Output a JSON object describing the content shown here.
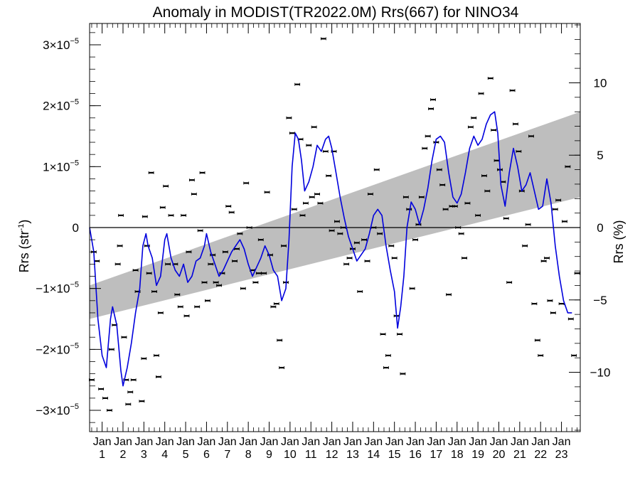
{
  "chart_data": {
    "type": "line",
    "title": "Anomaly in MODIST(TR2022.0M) Rrs(667) for NINO34",
    "ylabel_left": "Rrs (str",
    "ylabel_left_sup": "-1",
    "ylabel_left_close": ")",
    "ylabel_right": "Rrs (%)",
    "xlabel": "",
    "ylim": [
      -3.35e-05,
      3.35e-05
    ],
    "y_right_lim": [
      -14.1,
      14.1
    ],
    "xlim": [
      0.4,
      23.9
    ],
    "left_ticks": [
      {
        "mant": "3×10",
        "exp": "−5",
        "value": 3e-05
      },
      {
        "mant": "2×10",
        "exp": "−5",
        "value": 2e-05
      },
      {
        "mant": "1×10",
        "exp": "−5",
        "value": 1e-05
      },
      {
        "mant": "0",
        "exp": "",
        "value": 0
      },
      {
        "mant": "−1×10",
        "exp": "−5",
        "value": -1e-05
      },
      {
        "mant": "−2×10",
        "exp": "−5",
        "value": -2e-05
      },
      {
        "mant": "−3×10",
        "exp": "−5",
        "value": -3e-05
      }
    ],
    "right_ticks": [
      {
        "label": "10",
        "value": 10
      },
      {
        "label": "5",
        "value": 5
      },
      {
        "label": "0",
        "value": 0
      },
      {
        "label": "−5",
        "value": -5
      },
      {
        "label": "−10",
        "value": -10
      }
    ],
    "x_tick_month": "Jan",
    "x_tick_years": [
      "1",
      "2",
      "3",
      "4",
      "5",
      "6",
      "7",
      "8",
      "9",
      "10",
      "11",
      "12",
      "13",
      "14",
      "15",
      "16",
      "17",
      "18",
      "19",
      "20",
      "21",
      "22",
      "23"
    ],
    "trend_band": {
      "x": [
        0.4,
        23.9
      ],
      "upper": [
        -9.5e-06,
        1.9e-05
      ],
      "lower": [
        -1.5e-05,
        5e-06
      ],
      "color": "#bebebe"
    },
    "zero_line_color": "#000000",
    "series": [
      {
        "kind": "smoothed",
        "color": "#0000dd",
        "points": [
          [
            0.4,
            0.0
          ],
          [
            0.6,
            -0.4
          ],
          [
            0.8,
            -1.5
          ],
          [
            1.0,
            -2.1
          ],
          [
            1.2,
            -2.3
          ],
          [
            1.4,
            -1.5
          ],
          [
            1.5,
            -1.3
          ],
          [
            1.7,
            -1.6
          ],
          [
            1.9,
            -2.35
          ],
          [
            2.0,
            -2.6
          ],
          [
            2.2,
            -2.3
          ],
          [
            2.4,
            -1.9
          ],
          [
            2.6,
            -1.4
          ],
          [
            2.8,
            -1.0
          ],
          [
            2.95,
            -0.3
          ],
          [
            3.1,
            -0.1
          ],
          [
            3.2,
            -0.3
          ],
          [
            3.4,
            -0.5
          ],
          [
            3.6,
            -0.95
          ],
          [
            3.8,
            -0.8
          ],
          [
            4.0,
            -0.2
          ],
          [
            4.1,
            -0.1
          ],
          [
            4.3,
            -0.5
          ],
          [
            4.5,
            -0.7
          ],
          [
            4.7,
            -0.8
          ],
          [
            4.9,
            -0.6
          ],
          [
            5.1,
            -0.9
          ],
          [
            5.3,
            -0.8
          ],
          [
            5.5,
            -0.55
          ],
          [
            5.7,
            -0.5
          ],
          [
            5.9,
            -0.3
          ],
          [
            6.0,
            -0.1
          ],
          [
            6.2,
            -0.4
          ],
          [
            6.4,
            -0.6
          ],
          [
            6.6,
            -0.8
          ],
          [
            6.8,
            -0.7
          ],
          [
            7.0,
            -0.55
          ],
          [
            7.2,
            -0.4
          ],
          [
            7.4,
            -0.3
          ],
          [
            7.6,
            -0.2
          ],
          [
            7.8,
            -0.35
          ],
          [
            8.0,
            -0.6
          ],
          [
            8.2,
            -0.8
          ],
          [
            8.4,
            -0.65
          ],
          [
            8.6,
            -0.5
          ],
          [
            8.8,
            -0.3
          ],
          [
            9.0,
            -0.45
          ],
          [
            9.2,
            -0.7
          ],
          [
            9.4,
            -0.8
          ],
          [
            9.6,
            -1.2
          ],
          [
            9.8,
            -1.0
          ],
          [
            9.95,
            -0.2
          ],
          [
            10.1,
            1.0
          ],
          [
            10.25,
            1.55
          ],
          [
            10.4,
            1.45
          ],
          [
            10.55,
            1.1
          ],
          [
            10.7,
            0.6
          ],
          [
            10.9,
            0.75
          ],
          [
            11.1,
            1.0
          ],
          [
            11.3,
            1.35
          ],
          [
            11.5,
            1.25
          ],
          [
            11.7,
            1.45
          ],
          [
            11.85,
            1.5
          ],
          [
            12.0,
            1.3
          ],
          [
            12.2,
            0.9
          ],
          [
            12.4,
            0.5
          ],
          [
            12.6,
            0.15
          ],
          [
            12.8,
            -0.15
          ],
          [
            13.0,
            -0.35
          ],
          [
            13.2,
            -0.55
          ],
          [
            13.4,
            -0.45
          ],
          [
            13.6,
            -0.35
          ],
          [
            13.8,
            -0.1
          ],
          [
            14.0,
            0.2
          ],
          [
            14.2,
            0.3
          ],
          [
            14.4,
            0.2
          ],
          [
            14.6,
            -0.3
          ],
          [
            14.8,
            -0.7
          ],
          [
            15.0,
            -1.05
          ],
          [
            15.15,
            -1.65
          ],
          [
            15.3,
            -1.3
          ],
          [
            15.45,
            -0.8
          ],
          [
            15.6,
            0.0
          ],
          [
            15.8,
            0.42
          ],
          [
            16.0,
            0.3
          ],
          [
            16.2,
            0.05
          ],
          [
            16.4,
            0.3
          ],
          [
            16.6,
            0.65
          ],
          [
            16.8,
            1.1
          ],
          [
            17.0,
            1.45
          ],
          [
            17.2,
            1.5
          ],
          [
            17.4,
            1.4
          ],
          [
            17.6,
            0.9
          ],
          [
            17.8,
            0.5
          ],
          [
            18.0,
            0.4
          ],
          [
            18.2,
            0.55
          ],
          [
            18.4,
            0.9
          ],
          [
            18.6,
            1.3
          ],
          [
            18.8,
            1.5
          ],
          [
            19.0,
            1.35
          ],
          [
            19.2,
            1.45
          ],
          [
            19.4,
            1.7
          ],
          [
            19.6,
            1.85
          ],
          [
            19.8,
            1.9
          ],
          [
            19.95,
            1.55
          ],
          [
            20.1,
            0.7
          ],
          [
            20.3,
            0.35
          ],
          [
            20.5,
            0.9
          ],
          [
            20.7,
            1.3
          ],
          [
            20.9,
            1.0
          ],
          [
            21.1,
            0.6
          ],
          [
            21.3,
            0.7
          ],
          [
            21.5,
            0.9
          ],
          [
            21.7,
            0.6
          ],
          [
            21.9,
            0.3
          ],
          [
            22.1,
            0.35
          ],
          [
            22.3,
            0.8
          ],
          [
            22.5,
            0.4
          ],
          [
            22.7,
            -0.3
          ],
          [
            22.9,
            -0.8
          ],
          [
            23.1,
            -1.2
          ],
          [
            23.3,
            -1.4
          ],
          [
            23.5,
            -1.4
          ]
        ]
      },
      {
        "kind": "monthly",
        "color": "#000000",
        "points": [
          [
            0.5,
            -2.5
          ],
          [
            0.6,
            -0.4
          ],
          [
            0.75,
            -0.55
          ],
          [
            0.95,
            -2.65
          ],
          [
            1.15,
            -2.8
          ],
          [
            1.35,
            -3.0
          ],
          [
            1.45,
            -2.0
          ],
          [
            1.6,
            -1.6
          ],
          [
            1.75,
            -0.6
          ],
          [
            1.85,
            -0.3
          ],
          [
            1.9,
            0.2
          ],
          [
            2.05,
            -1.8
          ],
          [
            2.15,
            -2.5
          ],
          [
            2.25,
            -2.9
          ],
          [
            2.35,
            -2.7
          ],
          [
            2.5,
            -2.5
          ],
          [
            2.6,
            -0.7
          ],
          [
            2.7,
            -1.05
          ],
          [
            2.9,
            -2.85
          ],
          [
            3.0,
            -2.15
          ],
          [
            3.05,
            0.18
          ],
          [
            3.15,
            -0.3
          ],
          [
            3.25,
            -0.75
          ],
          [
            3.35,
            0.9
          ],
          [
            3.5,
            -1.05
          ],
          [
            3.6,
            -2.1
          ],
          [
            3.7,
            -2.45
          ],
          [
            3.8,
            -1.4
          ],
          [
            3.9,
            0.33
          ],
          [
            4.05,
            0.68
          ],
          [
            4.15,
            -0.6
          ],
          [
            4.3,
            0.2
          ],
          [
            4.5,
            -0.6
          ],
          [
            4.6,
            -1.1
          ],
          [
            4.75,
            -1.3
          ],
          [
            4.9,
            0.2
          ],
          [
            5.05,
            -1.45
          ],
          [
            5.15,
            -0.4
          ],
          [
            5.3,
            0.78
          ],
          [
            5.4,
            0.55
          ],
          [
            5.55,
            -1.3
          ],
          [
            5.7,
            -0.05
          ],
          [
            5.8,
            0.9
          ],
          [
            5.9,
            -0.9
          ],
          [
            6.05,
            -1.2
          ],
          [
            6.2,
            -0.6
          ],
          [
            6.3,
            -0.45
          ],
          [
            6.45,
            -0.9
          ],
          [
            6.6,
            -0.95
          ],
          [
            6.75,
            -0.75
          ],
          [
            6.9,
            -0.4
          ],
          [
            7.05,
            0.35
          ],
          [
            7.2,
            0.25
          ],
          [
            7.35,
            -0.55
          ],
          [
            7.45,
            -0.35
          ],
          [
            7.6,
            -0.1
          ],
          [
            7.75,
            -1.0
          ],
          [
            7.9,
            0.73
          ],
          [
            8.05,
            0.0
          ],
          [
            8.2,
            -0.7
          ],
          [
            8.35,
            -0.9
          ],
          [
            8.5,
            -0.75
          ],
          [
            8.6,
            -0.2
          ],
          [
            8.75,
            -0.75
          ],
          [
            8.9,
            0.58
          ],
          [
            9.05,
            -0.45
          ],
          [
            9.2,
            -1.3
          ],
          [
            9.35,
            -1.25
          ],
          [
            9.5,
            -1.85
          ],
          [
            9.6,
            -2.3
          ],
          [
            9.7,
            -0.3
          ],
          [
            9.8,
            -0.9
          ],
          [
            9.95,
            1.8
          ],
          [
            10.1,
            1.55
          ],
          [
            10.2,
            0.3
          ],
          [
            10.35,
            2.35
          ],
          [
            10.5,
            1.45
          ],
          [
            10.6,
            0.2
          ],
          [
            10.75,
            0.4
          ],
          [
            10.9,
            1.35
          ],
          [
            11.05,
            0.5
          ],
          [
            11.15,
            1.65
          ],
          [
            11.3,
            0.55
          ],
          [
            11.45,
            0.4
          ],
          [
            11.6,
            3.1
          ],
          [
            11.7,
            1.25
          ],
          [
            11.85,
            0.85
          ],
          [
            12.0,
            -0.05
          ],
          [
            12.1,
            1.25
          ],
          [
            12.25,
            0.1
          ],
          [
            12.4,
            -0.1
          ],
          [
            12.55,
            0.0
          ],
          [
            12.7,
            -0.6
          ],
          [
            12.85,
            -0.5
          ],
          [
            13.0,
            -0.35
          ],
          [
            13.2,
            -0.25
          ],
          [
            13.35,
            -1.05
          ],
          [
            13.55,
            -0.2
          ],
          [
            13.7,
            -0.55
          ],
          [
            13.85,
            0.55
          ],
          [
            14.0,
            0.0
          ],
          [
            14.15,
            0.95
          ],
          [
            14.3,
            -0.1
          ],
          [
            14.45,
            -1.75
          ],
          [
            14.6,
            -2.3
          ],
          [
            14.7,
            -2.1
          ],
          [
            14.85,
            -0.3
          ],
          [
            15.0,
            -0.5
          ],
          [
            15.1,
            -1.45
          ],
          [
            15.25,
            -1.75
          ],
          [
            15.4,
            -2.4
          ],
          [
            15.55,
            0.5
          ],
          [
            15.7,
            0.3
          ],
          [
            15.85,
            -1.0
          ],
          [
            16.0,
            -0.2
          ],
          [
            16.15,
            0.05
          ],
          [
            16.3,
            0.5
          ],
          [
            16.45,
            1.3
          ],
          [
            16.6,
            1.5
          ],
          [
            16.75,
            1.95
          ],
          [
            16.85,
            2.1
          ],
          [
            17.0,
            1.4
          ],
          [
            17.15,
            0.95
          ],
          [
            17.3,
            0.7
          ],
          [
            17.45,
            0.3
          ],
          [
            17.6,
            -1.1
          ],
          [
            17.75,
            0.35
          ],
          [
            17.9,
            0.35
          ],
          [
            18.05,
            0.0
          ],
          [
            18.2,
            -0.1
          ],
          [
            18.35,
            -0.5
          ],
          [
            18.5,
            0.4
          ],
          [
            18.65,
            1.65
          ],
          [
            18.8,
            1.8
          ],
          [
            19.0,
            0.2
          ],
          [
            19.15,
            2.2
          ],
          [
            19.3,
            0.85
          ],
          [
            19.45,
            0.6
          ],
          [
            19.6,
            2.45
          ],
          [
            19.75,
            1.6
          ],
          [
            19.9,
            1.1
          ],
          [
            20.05,
            0.95
          ],
          [
            20.2,
            0.75
          ],
          [
            20.35,
            0.15
          ],
          [
            20.5,
            -0.9
          ],
          [
            20.65,
            2.25
          ],
          [
            20.8,
            1.7
          ],
          [
            20.95,
            1.25
          ],
          [
            21.1,
            0.6
          ],
          [
            21.25,
            -0.3
          ],
          [
            21.4,
            0.05
          ],
          [
            21.55,
            1.5
          ],
          [
            21.7,
            -1.25
          ],
          [
            21.85,
            -1.85
          ],
          [
            22.0,
            -2.1
          ],
          [
            22.15,
            -0.55
          ],
          [
            22.3,
            -0.5
          ],
          [
            22.45,
            -1.2
          ],
          [
            22.6,
            -1.4
          ],
          [
            22.7,
            0.3
          ],
          [
            22.85,
            0.45
          ],
          [
            23.0,
            -1.25
          ],
          [
            23.15,
            0.1
          ],
          [
            23.3,
            1.0
          ],
          [
            23.45,
            -1.5
          ],
          [
            23.6,
            -2.1
          ],
          [
            23.75,
            -0.75
          ]
        ]
      }
    ]
  }
}
